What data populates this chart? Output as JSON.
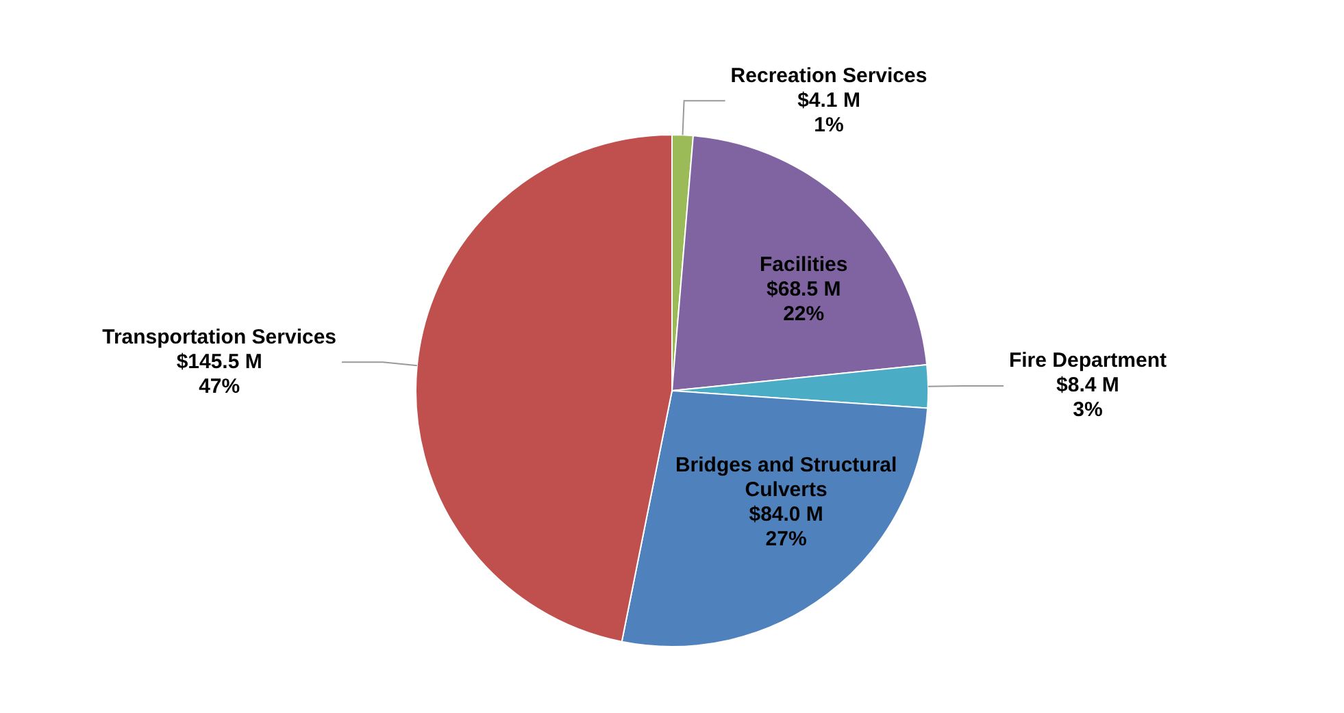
{
  "chart_data": {
    "type": "pie",
    "categories": [
      "Recreation Services",
      "Facilities",
      "Fire Department",
      "Bridges and Structural Culverts",
      "Transportation Services"
    ],
    "values": [
      4.1,
      68.5,
      8.4,
      84.0,
      145.5
    ],
    "value_labels": [
      "$4.1 M\n1%",
      "$68.5 M\n22%",
      "$8.4 M\n3%",
      "$84.0 M\n27%",
      "$145.5 M\n47%"
    ],
    "colors": [
      "#9bbb59",
      "#8064a2",
      "#4bacc6",
      "#4f81bd",
      "#c0504d"
    ],
    "legend": false
  }
}
